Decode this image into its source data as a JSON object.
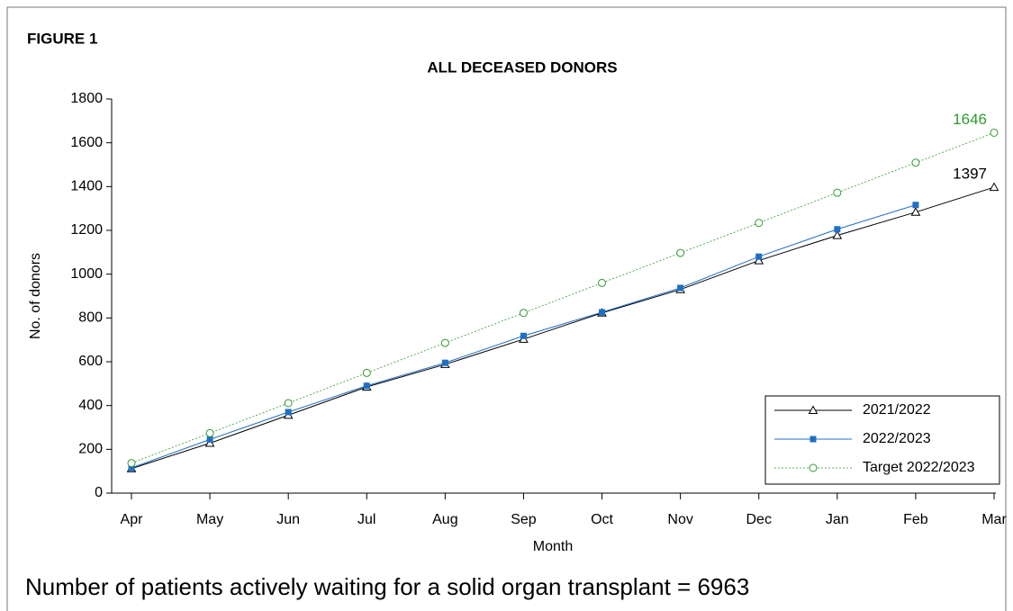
{
  "chart_data": {
    "type": "line",
    "figure_label": "FIGURE 1",
    "title": "ALL DECEASED DONORS",
    "xlabel": "Month",
    "ylabel": "No. of donors",
    "footnote": "Number of patients actively waiting for a solid organ transplant = 6963",
    "categories": [
      "Apr",
      "May",
      "Jun",
      "Jul",
      "Aug",
      "Sep",
      "Oct",
      "Nov",
      "Dec",
      "Jan",
      "Feb",
      "Mar"
    ],
    "series": [
      {
        "name": "2021/2022",
        "color": "#000000",
        "marker": "triangle",
        "dash": "solid",
        "labeled_last": true,
        "values": [
          112,
          228,
          356,
          485,
          588,
          703,
          823,
          930,
          1062,
          1177,
          1283,
          1397
        ]
      },
      {
        "name": "2022/2023",
        "color": "#1f6fc5",
        "marker": "square",
        "dash": "solid",
        "labeled_last": false,
        "values": [
          115,
          245,
          370,
          490,
          595,
          718,
          826,
          937,
          1080,
          1205,
          1316,
          null
        ]
      },
      {
        "name": "Target 2022/2023",
        "color": "#2e9a2e",
        "marker": "circle",
        "dash": "dotted",
        "labeled_last": true,
        "values": [
          137,
          274,
          411,
          549,
          686,
          823,
          960,
          1097,
          1234,
          1372,
          1509,
          1646
        ]
      }
    ],
    "ylim": [
      0,
      1800
    ],
    "yticks": [
      0,
      200,
      400,
      600,
      800,
      1000,
      1200,
      1400,
      1600,
      1800
    ],
    "legend": "lower right"
  }
}
